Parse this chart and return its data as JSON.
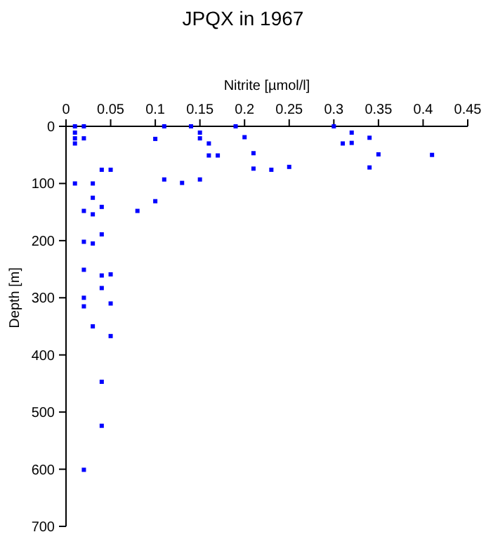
{
  "chart_data": {
    "type": "scatter",
    "title": "JPQX in 1967",
    "xlabel": "Nitrite [µmol/l]",
    "ylabel": "Depth [m]",
    "xlim": [
      0,
      0.45
    ],
    "xticks": [
      {
        "value": 0,
        "label": "0"
      },
      0.05,
      0.1,
      0.15,
      0.2,
      0.25,
      0.3,
      0.35,
      0.4,
      0.45
    ],
    "ylim": [
      700,
      0
    ],
    "yticks": [
      0,
      100,
      200,
      300,
      400,
      500,
      600,
      700
    ],
    "marker": "square",
    "grid": false,
    "series": [
      {
        "color": "#0000ff",
        "x": [
          0.01,
          0.01,
          0.01,
          0.01,
          0.02,
          0.02,
          0.01,
          0.04,
          0.05,
          0.03,
          0.03,
          0.03,
          0.02,
          0.04,
          0.04,
          0.02,
          0.03,
          0.1,
          0.11,
          0.11,
          0.13,
          0.1,
          0.08,
          0.14,
          0.15,
          0.15,
          0.16,
          0.16,
          0.17,
          0.15,
          0.19,
          0.2,
          0.21,
          0.21,
          0.23,
          0.25,
          0.3,
          0.31,
          0.32,
          0.32,
          0.34,
          0.34,
          0.35,
          0.41,
          0.02,
          0.04,
          0.05,
          0.04,
          0.02,
          0.02,
          0.05,
          0.03,
          0.05,
          0.04,
          0.04,
          0.02
        ],
        "values": [
          0,
          11,
          21,
          30,
          0,
          21,
          100,
          76,
          76,
          100,
          125,
          154,
          148,
          141,
          189,
          202,
          205,
          22,
          0,
          93,
          99,
          131,
          148,
          0,
          11,
          21,
          30,
          51,
          51,
          93,
          0,
          19,
          47,
          74,
          76,
          71,
          0,
          30,
          11,
          29,
          20,
          72,
          49,
          50,
          251,
          261,
          259,
          283,
          300,
          315,
          310,
          350,
          367,
          447,
          524,
          601
        ]
      }
    ]
  }
}
